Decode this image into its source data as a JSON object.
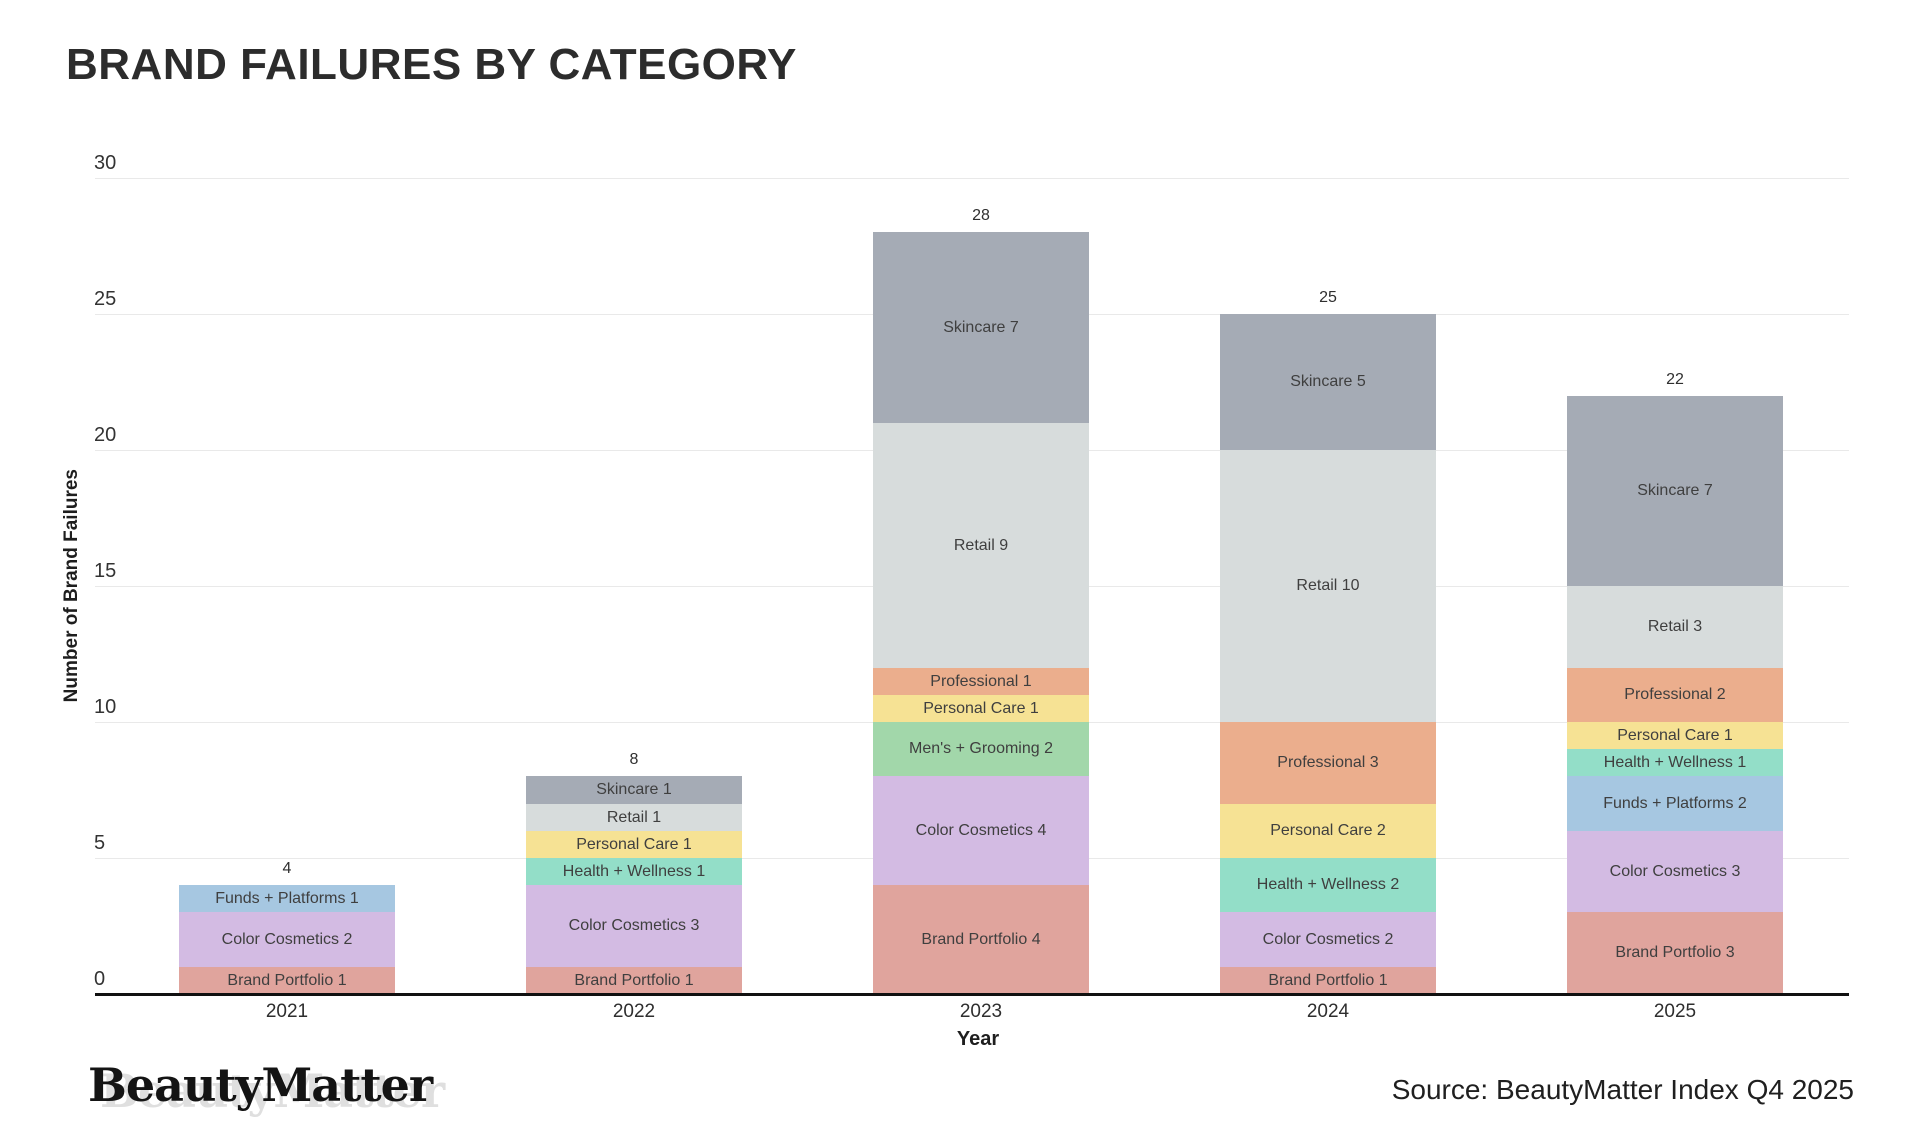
{
  "title": "BRAND FAILURES BY CATEGORY",
  "chart_data": {
    "type": "bar",
    "stacked": true,
    "title": "BRAND FAILURES BY CATEGORY",
    "xlabel": "Year",
    "ylabel": "Number of Brand Failures",
    "categories": [
      "2021",
      "2022",
      "2023",
      "2024",
      "2025"
    ],
    "ylim": [
      0,
      30
    ],
    "yticks": [
      0,
      5,
      10,
      15,
      20,
      25,
      30
    ],
    "grid": "horizontal",
    "legend_position": "none",
    "segment_label_format": "name value",
    "totals": [
      4,
      8,
      28,
      25,
      22
    ],
    "series": [
      {
        "name": "Brand Portfolio",
        "color": "#e0a49d",
        "values": [
          1,
          1,
          4,
          1,
          3
        ]
      },
      {
        "name": "Color Cosmetics",
        "color": "#d3bbe3",
        "values": [
          2,
          3,
          4,
          2,
          3
        ]
      },
      {
        "name": "Funds + Platforms",
        "color": "#a6c7e1",
        "values": [
          1,
          0,
          0,
          0,
          2
        ]
      },
      {
        "name": "Health + Wellness",
        "color": "#93dec8",
        "values": [
          0,
          1,
          0,
          2,
          1
        ]
      },
      {
        "name": "Men's + Grooming",
        "color": "#a2d7aa",
        "values": [
          0,
          0,
          2,
          0,
          0
        ]
      },
      {
        "name": "Personal Care",
        "color": "#f6e294",
        "values": [
          0,
          1,
          1,
          2,
          1
        ]
      },
      {
        "name": "Professional",
        "color": "#ebae8d",
        "values": [
          0,
          0,
          1,
          3,
          2
        ]
      },
      {
        "name": "Retail",
        "color": "#d7dcdc",
        "values": [
          0,
          1,
          9,
          10,
          3
        ]
      },
      {
        "name": "Skincare",
        "color": "#a5abb5",
        "values": [
          0,
          1,
          7,
          5,
          7
        ]
      }
    ]
  },
  "footer": {
    "logo_text": "BeautyMatter",
    "source": "Source: BeautyMatter Index Q4 2025"
  }
}
